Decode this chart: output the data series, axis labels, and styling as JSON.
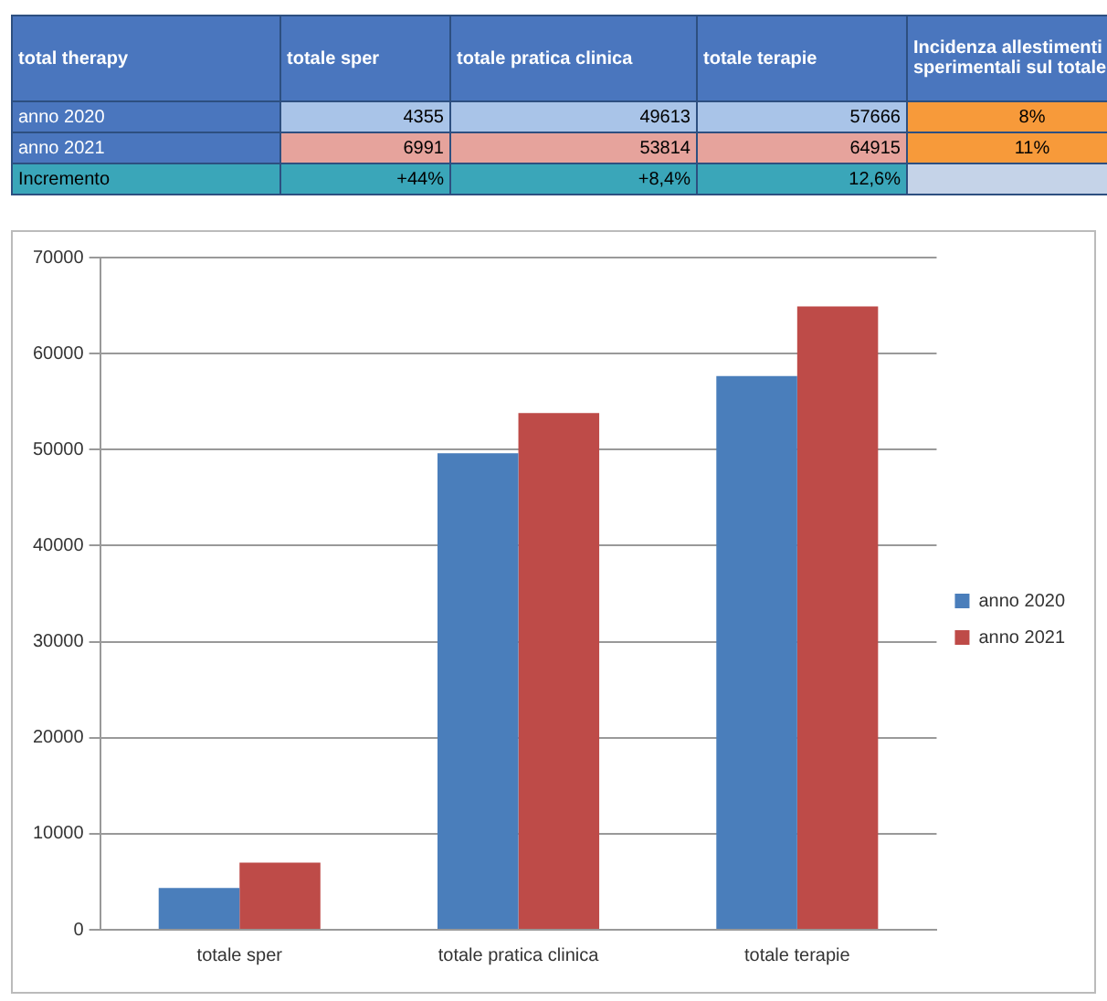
{
  "chart_data": {
    "type": "bar",
    "categories": [
      "totale sper",
      "totale pratica clinica",
      "totale terapie"
    ],
    "series": [
      {
        "name": "anno 2020",
        "color": "#4a7ebb",
        "values": [
          4355,
          49613,
          57666
        ]
      },
      {
        "name": "anno 2021",
        "color": "#be4b48",
        "values": [
          6991,
          53814,
          64915
        ]
      }
    ],
    "ylim": [
      0,
      70000
    ],
    "yticks": [
      0,
      10000,
      20000,
      30000,
      40000,
      50000,
      60000,
      70000
    ],
    "grid": "y",
    "legend": "right",
    "annotations": [
      "total therapy",
      "Incidenza allestimenti sperimentali sul totale",
      "4355",
      "49613",
      "57666",
      "8%",
      "6991",
      "53814",
      "64915",
      "11%",
      "Incremento",
      "+44%",
      "+8,4%",
      "12,6%"
    ]
  }
}
